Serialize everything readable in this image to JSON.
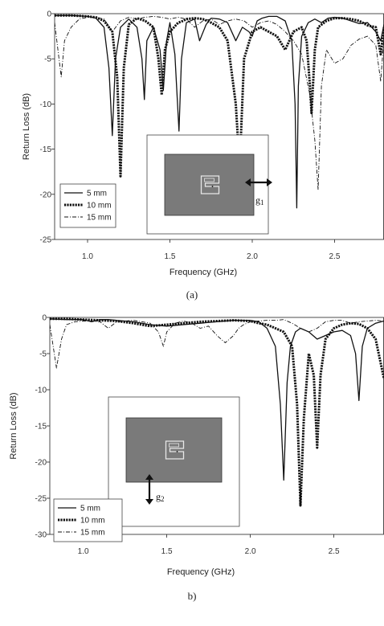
{
  "chart_data": [
    {
      "type": "line",
      "panel": "a",
      "caption": "(a)",
      "xlabel": "Frequency (GHz)",
      "ylabel": "Return Loss (dB)",
      "xlim": [
        0.8,
        2.8
      ],
      "ylim": [
        -25,
        0
      ],
      "xticks": [
        "1.0",
        "1.5",
        "2.0",
        "2.5"
      ],
      "yticks": [
        "0",
        "-5",
        "-10",
        "-15",
        "-20",
        "-25"
      ],
      "inset_label": "g",
      "inset_sub": "1",
      "legend_position": "bottom-left",
      "grid": false,
      "series": [
        {
          "name": "5 mm",
          "style": "solid",
          "x": [
            0.8,
            0.9,
            1.0,
            1.05,
            1.1,
            1.13,
            1.15,
            1.17,
            1.2,
            1.25,
            1.3,
            1.33,
            1.345,
            1.36,
            1.4,
            1.44,
            1.46,
            1.48,
            1.5,
            1.53,
            1.555,
            1.57,
            1.6,
            1.65,
            1.68,
            1.72,
            1.75,
            1.8,
            1.85,
            1.9,
            1.94,
            1.98,
            2.0,
            2.03,
            2.06,
            2.1,
            2.15,
            2.2,
            2.24,
            2.26,
            2.27,
            2.28,
            2.3,
            2.34,
            2.38,
            2.42,
            2.46,
            2.5,
            2.55,
            2.6,
            2.65,
            2.7,
            2.75,
            2.78,
            2.8
          ],
          "y": [
            -0.2,
            -0.2,
            -0.3,
            -0.5,
            -1.5,
            -6,
            -13.5,
            -5,
            -1.5,
            -0.6,
            -1.5,
            -5,
            -9.5,
            -3,
            -1.5,
            -4,
            -8.5,
            -3,
            -1.0,
            -4.5,
            -13,
            -5,
            -1.0,
            -0.6,
            -3,
            -1.2,
            -0.5,
            -0.6,
            -1,
            -3,
            -1.5,
            -2,
            -2.5,
            -0.8,
            -0.5,
            -0.3,
            -0.3,
            -0.8,
            -3,
            -10,
            -21.5,
            -8,
            -2.5,
            -1,
            -0.6,
            -1,
            -0.5,
            -0.4,
            -0.5,
            -0.8,
            -1.1,
            -1.0,
            -2.0,
            -3.0,
            -1.2
          ]
        },
        {
          "name": "10 mm",
          "style": "thick-dashed",
          "x": [
            0.8,
            0.9,
            1.0,
            1.05,
            1.1,
            1.15,
            1.18,
            1.2,
            1.22,
            1.25,
            1.3,
            1.35,
            1.4,
            1.43,
            1.45,
            1.47,
            1.5,
            1.55,
            1.58,
            1.6,
            1.65,
            1.7,
            1.75,
            1.8,
            1.85,
            1.9,
            1.92,
            1.93,
            1.95,
            2.0,
            2.05,
            2.1,
            2.15,
            2.2,
            2.25,
            2.3,
            2.33,
            2.35,
            2.36,
            2.38,
            2.4,
            2.45,
            2.5,
            2.55,
            2.6,
            2.65,
            2.7,
            2.75,
            2.78,
            2.8
          ],
          "y": [
            -0.2,
            -0.2,
            -0.3,
            -0.4,
            -0.8,
            -2,
            -7,
            -18,
            -6,
            -1.2,
            -0.5,
            -0.8,
            -1.5,
            -5,
            -9,
            -4,
            -2,
            -1.0,
            -0.8,
            -0.6,
            -0.5,
            -0.6,
            -1,
            -1.5,
            -3,
            -10,
            -16,
            -14,
            -5,
            -2,
            -1.5,
            -2,
            -2.5,
            -4,
            -2,
            -1.5,
            -3,
            -8,
            -11,
            -4,
            -1.5,
            -0.8,
            -0.5,
            -0.5,
            -0.6,
            -0.8,
            -1.3,
            -1.5,
            -4.5,
            -1.5
          ]
        },
        {
          "name": "15 mm",
          "style": "dash-dot",
          "x": [
            0.8,
            0.82,
            0.84,
            0.86,
            0.9,
            0.95,
            1.0,
            1.05,
            1.1,
            1.15,
            1.2,
            1.25,
            1.3,
            1.35,
            1.4,
            1.45,
            1.5,
            1.55,
            1.6,
            1.65,
            1.7,
            1.75,
            1.8,
            1.85,
            1.9,
            1.95,
            2.0,
            2.05,
            2.1,
            2.15,
            2.2,
            2.25,
            2.3,
            2.35,
            2.38,
            2.4,
            2.42,
            2.45,
            2.5,
            2.55,
            2.6,
            2.65,
            2.7,
            2.75,
            2.78,
            2.8
          ],
          "y": [
            -1,
            -4,
            -7,
            -3,
            -1.5,
            -0.6,
            -0.4,
            -0.4,
            -0.6,
            -2,
            -0.8,
            -0.4,
            -0.6,
            -0.4,
            -0.3,
            -0.4,
            -0.6,
            -0.4,
            -0.6,
            -1.5,
            -0.8,
            -0.6,
            -1.2,
            -0.8,
            -0.6,
            -0.8,
            -1.5,
            -1,
            -0.8,
            -1.2,
            -2,
            -3,
            -4.5,
            -9,
            -14,
            -19.5,
            -8,
            -4,
            -5.5,
            -5,
            -3.5,
            -2.8,
            -2.5,
            -3.5,
            -7.5,
            -2.5
          ]
        }
      ]
    },
    {
      "type": "line",
      "panel": "b",
      "caption": "b)",
      "xlabel": "Frequency (GHz)",
      "ylabel": "Return Loss (dB)",
      "xlim": [
        0.8,
        2.8
      ],
      "ylim": [
        -30,
        0
      ],
      "xticks": [
        "1.0",
        "1.5",
        "2.0",
        "2.5"
      ],
      "yticks": [
        "0",
        "-5",
        "-10",
        "-15",
        "-20",
        "-25",
        "-30"
      ],
      "inset_label": "g",
      "inset_sub": "2",
      "legend_position": "bottom-left",
      "grid": false,
      "series": [
        {
          "name": "5 mm",
          "style": "solid",
          "x": [
            0.8,
            0.9,
            1.0,
            1.05,
            1.1,
            1.15,
            1.2,
            1.3,
            1.4,
            1.5,
            1.6,
            1.7,
            1.8,
            1.9,
            2.0,
            2.05,
            2.1,
            2.15,
            2.18,
            2.2,
            2.22,
            2.24,
            2.27,
            2.3,
            2.35,
            2.4,
            2.45,
            2.5,
            2.55,
            2.6,
            2.63,
            2.65,
            2.67,
            2.7,
            2.75,
            2.8
          ],
          "y": [
            -0.2,
            -0.3,
            -0.3,
            -0.6,
            -0.3,
            -0.3,
            -0.4,
            -0.6,
            -1.0,
            -1.2,
            -1.0,
            -0.8,
            -0.6,
            -0.4,
            -0.4,
            -0.6,
            -1.5,
            -4,
            -12,
            -22.5,
            -9,
            -4,
            -2,
            -1.5,
            -2,
            -3,
            -2.5,
            -2,
            -1.8,
            -2.5,
            -5,
            -11.5,
            -4,
            -1.5,
            -0.8,
            -0.5
          ]
        },
        {
          "name": "10 mm",
          "style": "thick-dashed",
          "x": [
            0.8,
            0.9,
            1.0,
            1.1,
            1.2,
            1.3,
            1.4,
            1.5,
            1.6,
            1.7,
            1.8,
            1.9,
            2.0,
            2.05,
            2.1,
            2.15,
            2.2,
            2.25,
            2.28,
            2.3,
            2.32,
            2.35,
            2.38,
            2.4,
            2.42,
            2.45,
            2.5,
            2.55,
            2.6,
            2.65,
            2.7,
            2.75,
            2.8
          ],
          "y": [
            -0.2,
            -0.2,
            -0.3,
            -0.4,
            -0.5,
            -0.8,
            -1.2,
            -1.0,
            -0.8,
            -0.6,
            -0.5,
            -0.4,
            -0.5,
            -0.8,
            -1.0,
            -1.5,
            -2.0,
            -4,
            -12,
            -26,
            -14,
            -5,
            -8,
            -18,
            -8,
            -3,
            -1.5,
            -1.0,
            -0.8,
            -0.9,
            -1.5,
            -3,
            -8.5
          ]
        },
        {
          "name": "15 mm",
          "style": "dash-dot",
          "x": [
            0.8,
            0.82,
            0.84,
            0.87,
            0.9,
            0.95,
            1.0,
            1.05,
            1.1,
            1.15,
            1.2,
            1.3,
            1.4,
            1.45,
            1.48,
            1.5,
            1.55,
            1.6,
            1.65,
            1.7,
            1.75,
            1.8,
            1.85,
            1.9,
            1.93,
            1.96,
            2.0,
            2.05,
            2.1,
            2.15,
            2.2,
            2.25,
            2.3,
            2.35,
            2.4,
            2.45,
            2.5,
            2.55,
            2.6,
            2.65,
            2.7,
            2.75,
            2.8
          ],
          "y": [
            -1,
            -4,
            -7,
            -3,
            -1,
            -0.6,
            -0.5,
            -0.5,
            -0.6,
            -1.5,
            -0.6,
            -0.4,
            -0.8,
            -2,
            -4,
            -2,
            -0.8,
            -0.5,
            -0.8,
            -1.5,
            -1.2,
            -2.5,
            -3.5,
            -2.5,
            -1.5,
            -1,
            -0.6,
            -0.5,
            -0.4,
            -0.4,
            -0.3,
            -0.8,
            -1.5,
            -2.0,
            -1.5,
            -0.6,
            -0.4,
            -0.4,
            -0.8,
            -0.6,
            -0.5,
            -0.4,
            -0.5
          ]
        }
      ]
    }
  ]
}
